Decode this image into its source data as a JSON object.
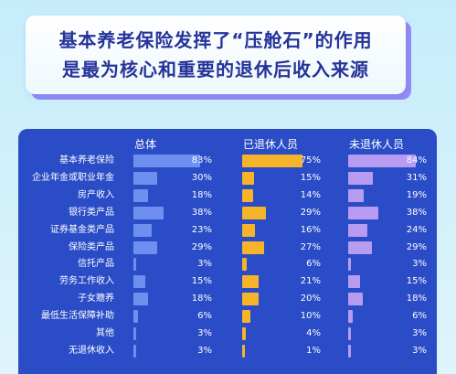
{
  "title": {
    "line1": "基本养老保险发挥了“压舱石”的作用",
    "line2": "是最为核心和重要的退休后收入来源"
  },
  "colors": {
    "panel": "#2a4cc6",
    "title_text": "#25339a",
    "title_shadow": "#8f8bf7"
  },
  "chart_data": {
    "type": "bar",
    "orientation": "horizontal",
    "categories": [
      "基本养老保险",
      "企业年金或职业年金",
      "房产收入",
      "银行类产品",
      "证券基金类产品",
      "保险类产品",
      "信托产品",
      "劳务工作收入",
      "子女赡养",
      "最低生活保障补助",
      "其他",
      "无退休收入"
    ],
    "series": [
      {
        "name": "总体",
        "color": "#6f8ff0",
        "values": [
          83,
          30,
          18,
          38,
          23,
          29,
          3,
          15,
          18,
          6,
          3,
          3
        ],
        "labels": [
          "83%",
          "30%",
          "18%",
          "38%",
          "23%",
          "29%",
          "3%",
          "15%",
          "18%",
          "6%",
          "3%",
          "3%"
        ]
      },
      {
        "name": "已退休人员",
        "color": "#f5b42a",
        "values": [
          75,
          15,
          14,
          29,
          16,
          27,
          6,
          21,
          20,
          10,
          4,
          1
        ],
        "labels": [
          "75%",
          "15%",
          "14%",
          "29%",
          "16%",
          "27%",
          "6%",
          "21%",
          "20%",
          "10%",
          "4%",
          "1%"
        ]
      },
      {
        "name": "未退休人员",
        "color": "#b89cf2",
        "values": [
          84,
          31,
          19,
          38,
          24,
          29,
          3,
          15,
          18,
          6,
          3,
          3
        ],
        "labels": [
          "84%",
          "31%",
          "19%",
          "38%",
          "24%",
          "29%",
          "3%",
          "15%",
          "18%",
          "6%",
          "3%",
          "3%"
        ]
      }
    ],
    "xlim": [
      0,
      100
    ]
  }
}
